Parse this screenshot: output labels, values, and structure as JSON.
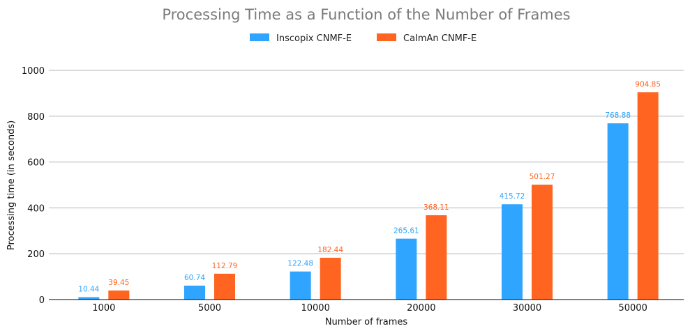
{
  "chart_data": {
    "type": "bar",
    "title": "Processing Time as a Function of the Number of Frames",
    "xlabel": "Number of frames",
    "ylabel": "Processing time (in seconds)",
    "categories": [
      "1000",
      "5000",
      "10000",
      "20000",
      "30000",
      "50000"
    ],
    "series": [
      {
        "name": "Inscopix CNMF-E",
        "color": "#2fa5ff",
        "values": [
          10.44,
          60.74,
          122.48,
          265.61,
          415.72,
          768.88
        ],
        "labels": [
          "10.44",
          "60.74",
          "122.48",
          "265.61",
          "415.72",
          "768.88"
        ]
      },
      {
        "name": "CaImAn CNMF-E",
        "color": "#ff6520",
        "values": [
          39.45,
          112.79,
          182.44,
          368.11,
          501.27,
          904.85
        ],
        "labels": [
          "39.45",
          "112.79",
          "182.44",
          "368.11",
          "501.27",
          "904.85"
        ]
      }
    ],
    "ylim": [
      0,
      1000
    ],
    "yticks": [
      "0",
      "200",
      "400",
      "600",
      "800",
      "1000"
    ],
    "ytick_values": [
      0,
      200,
      400,
      600,
      800,
      1000
    ],
    "grid": true,
    "legend_position": "top-center"
  }
}
